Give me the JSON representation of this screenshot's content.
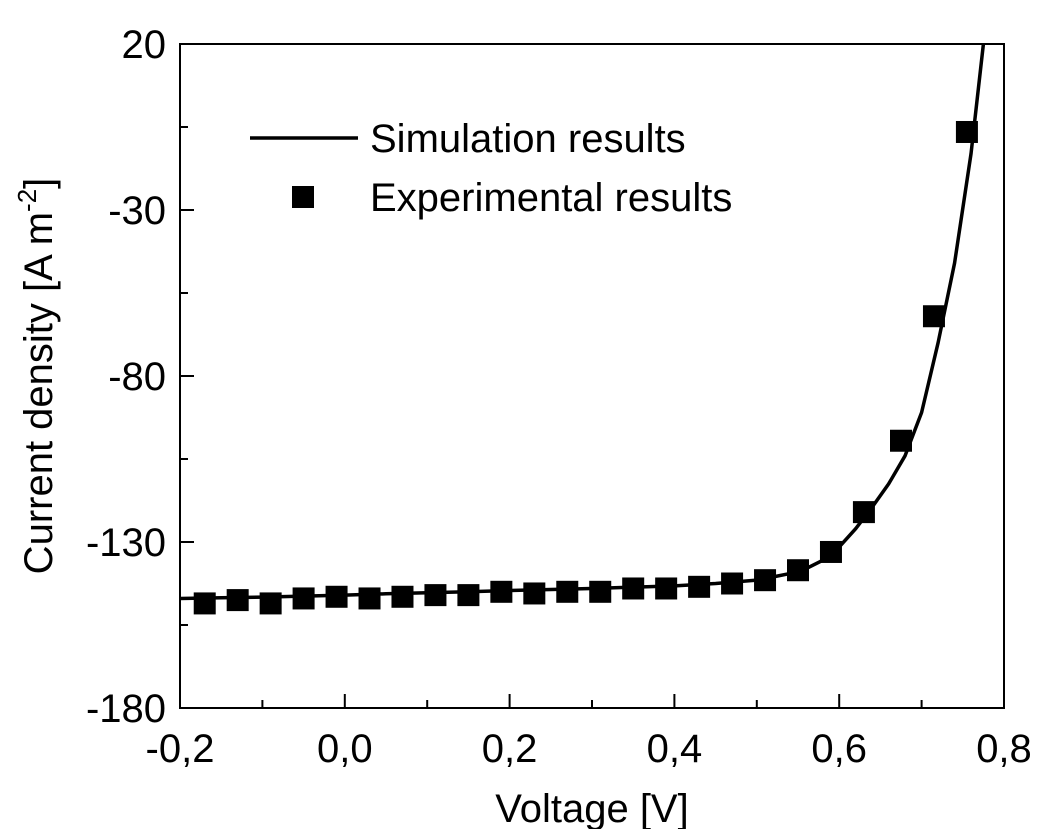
{
  "chart_data": {
    "type": "line",
    "title": "",
    "xlabel": "Voltage [V]",
    "ylabel": "Current density [A m",
    "ylabel_superscript": "-2",
    "ylabel_suffix": "]",
    "xlim": [
      -0.2,
      0.8
    ],
    "ylim": [
      -180,
      20
    ],
    "x_ticks": [
      -0.2,
      0.0,
      0.2,
      0.4,
      0.6,
      0.8
    ],
    "x_tick_labels": [
      "-0,2",
      "0,0",
      "0,2",
      "0,4",
      "0,6",
      "0,8"
    ],
    "y_ticks": [
      -180,
      -130,
      -80,
      -30,
      20
    ],
    "y_tick_labels": [
      "-180",
      "-130",
      "-80",
      "-30",
      "20"
    ],
    "grid": false,
    "legend_position": "top-left",
    "series": [
      {
        "name": "Simulation results",
        "style": "line",
        "color": "#000000",
        "x": [
          -0.2,
          -0.15,
          -0.1,
          -0.05,
          0.0,
          0.05,
          0.1,
          0.15,
          0.2,
          0.25,
          0.3,
          0.35,
          0.4,
          0.45,
          0.5,
          0.52,
          0.54,
          0.56,
          0.58,
          0.6,
          0.62,
          0.64,
          0.66,
          0.68,
          0.7,
          0.72,
          0.74,
          0.76,
          0.775
        ],
        "y": [
          -147,
          -146.8,
          -146.6,
          -146.3,
          -146,
          -145.6,
          -145.3,
          -145,
          -144.6,
          -144.3,
          -144,
          -143.6,
          -143.2,
          -142.5,
          -141.5,
          -140.5,
          -139.5,
          -138,
          -135.5,
          -131.5,
          -126,
          -119.5,
          -112.5,
          -104,
          -91,
          -70,
          -46,
          -13,
          20
        ]
      },
      {
        "name": "Experimental results",
        "style": "marker",
        "marker": "square",
        "color": "#000000",
        "x": [
          -0.17,
          -0.13,
          -0.09,
          -0.05,
          -0.01,
          0.03,
          0.07,
          0.11,
          0.15,
          0.19,
          0.23,
          0.27,
          0.31,
          0.35,
          0.39,
          0.43,
          0.47,
          0.51,
          0.55,
          0.59,
          0.63,
          0.675,
          0.715,
          0.755
        ],
        "y": [
          -148.5,
          -147.5,
          -148.5,
          -147,
          -146.5,
          -147,
          -146.5,
          -146,
          -146,
          -145,
          -145.5,
          -145,
          -145,
          -144,
          -144,
          -143.5,
          -142.5,
          -141.5,
          -138.5,
          -133,
          -121,
          -99.5,
          -62,
          -6.5
        ]
      }
    ]
  }
}
